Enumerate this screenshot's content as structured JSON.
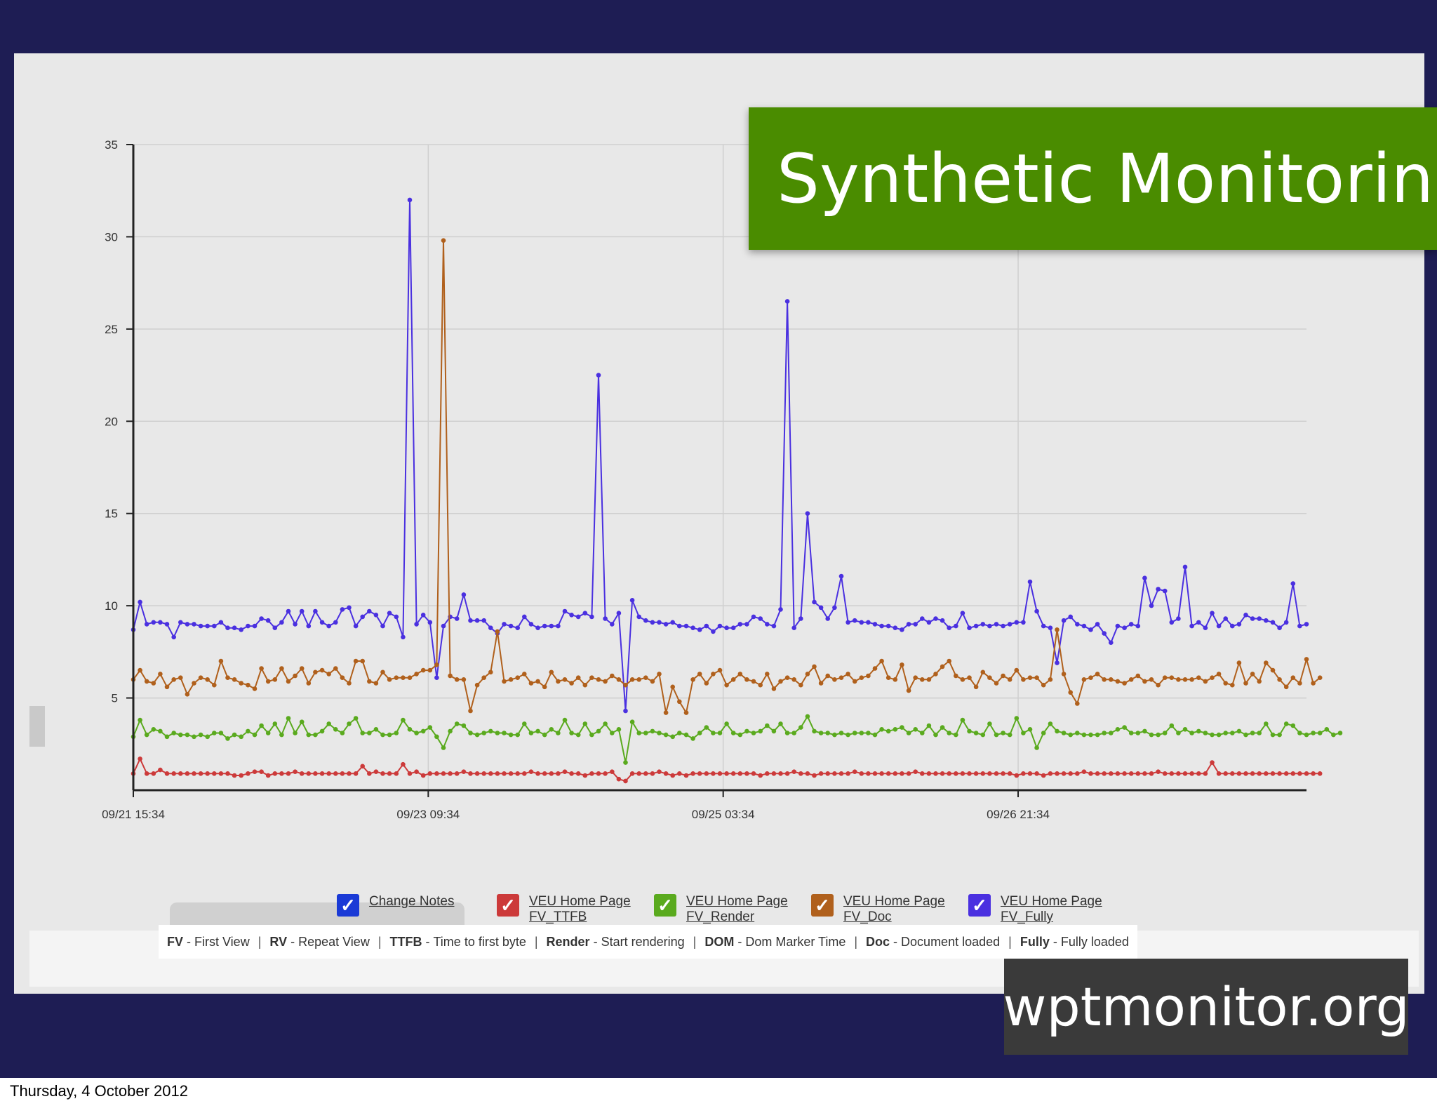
{
  "slide": {
    "title": "Synthetic Monitoring",
    "site": "wptmonitor.org",
    "footer_date": "Thursday, 4 October 2012"
  },
  "colors": {
    "slide_bg": "#1e1d54",
    "title_banner": "#4a8c00",
    "site_banner": "#3a3a3a",
    "change_notes": "#1a3ad6",
    "ttfb": "#cc3a3a",
    "render": "#5aaa1e",
    "doc": "#b0601c",
    "fully": "#4a30e0"
  },
  "legend": [
    {
      "line1": "Change Notes",
      "line2": "",
      "color_key": "change_notes"
    },
    {
      "line1": "VEU Home Page",
      "line2": "FV_TTFB",
      "color_key": "ttfb"
    },
    {
      "line1": "VEU Home Page",
      "line2": "FV_Render",
      "color_key": "render"
    },
    {
      "line1": "VEU Home Page",
      "line2": "FV_Doc",
      "color_key": "doc"
    },
    {
      "line1": "VEU Home Page",
      "line2": "FV_Fully",
      "color_key": "fully"
    }
  ],
  "abbreviations": [
    {
      "key": "FV",
      "text": "First View"
    },
    {
      "key": "RV",
      "text": "Repeat View"
    },
    {
      "key": "TTFB",
      "text": "Time to first byte"
    },
    {
      "key": "Render",
      "text": "Start rendering"
    },
    {
      "key": "DOM",
      "text": "Dom Marker Time"
    },
    {
      "key": "Doc",
      "text": "Document loaded"
    },
    {
      "key": "Fully",
      "text": "Fully loaded"
    }
  ],
  "chart_data": {
    "type": "line",
    "ylim": [
      0,
      35
    ],
    "yticks": [
      5,
      10,
      15,
      20,
      25,
      30,
      35
    ],
    "xtick_labels": [
      "09/21 15:34",
      "09/23 09:34",
      "09/25 03:34",
      "09/26 21:34"
    ],
    "grid": true,
    "legend_position": "bottom",
    "series": [
      {
        "name": "VEU Home Page FV_Fully",
        "color_key": "fully",
        "values": [
          8.7,
          10.2,
          9.0,
          9.1,
          9.1,
          9.0,
          8.3,
          9.1,
          9.0,
          9.0,
          8.9,
          8.9,
          8.9,
          9.1,
          8.8,
          8.8,
          8.7,
          8.9,
          8.9,
          9.3,
          9.2,
          8.8,
          9.1,
          9.7,
          9.0,
          9.7,
          8.9,
          9.7,
          9.1,
          8.9,
          9.1,
          9.8,
          9.9,
          8.9,
          9.4,
          9.7,
          9.5,
          8.9,
          9.6,
          9.4,
          8.3,
          32.0,
          9.0,
          9.5,
          9.1,
          6.1,
          8.9,
          9.4,
          9.3,
          10.6,
          9.2,
          9.2,
          9.2,
          8.8,
          8.5,
          9.0,
          8.9,
          8.8,
          9.4,
          9.0,
          8.8,
          8.9,
          8.9,
          8.9,
          9.7,
          9.5,
          9.4,
          9.6,
          9.4,
          22.5,
          9.3,
          9.0,
          9.6,
          4.3,
          10.3,
          9.4,
          9.2,
          9.1,
          9.1,
          9.0,
          9.1,
          8.9,
          8.9,
          8.8,
          8.7,
          8.9,
          8.6,
          8.9,
          8.8,
          8.8,
          9.0,
          9.0,
          9.4,
          9.3,
          9.0,
          8.9,
          9.8,
          26.5,
          8.8,
          9.3,
          15.0,
          10.2,
          9.9,
          9.3,
          9.9,
          11.6,
          9.1,
          9.2,
          9.1,
          9.1,
          9.0,
          8.9,
          8.9,
          8.8,
          8.7,
          9.0,
          9.0,
          9.3,
          9.1,
          9.3,
          9.2,
          8.8,
          8.9,
          9.6,
          8.8,
          8.9,
          9.0,
          8.9,
          9.0,
          8.9,
          9.0,
          9.1,
          9.1,
          11.3,
          9.7,
          8.9,
          8.8,
          6.9,
          9.2,
          9.4,
          9.0,
          8.9,
          8.7,
          9.0,
          8.5,
          8.0,
          8.9,
          8.8,
          9.0,
          8.9,
          11.5,
          10.0,
          10.9,
          10.8,
          9.1,
          9.3,
          12.1,
          8.9,
          9.1,
          8.8,
          9.6,
          8.9,
          9.3,
          8.9,
          9.0,
          9.5,
          9.3,
          9.3,
          9.2,
          9.1,
          8.8,
          9.1,
          11.2,
          8.9,
          9.0
        ]
      },
      {
        "name": "VEU Home Page FV_Doc",
        "color_key": "doc",
        "values": [
          6.0,
          6.5,
          5.9,
          5.8,
          6.3,
          5.6,
          6.0,
          6.1,
          5.2,
          5.8,
          6.1,
          6.0,
          5.7,
          7.0,
          6.1,
          6.0,
          5.8,
          5.7,
          5.5,
          6.6,
          5.9,
          6.0,
          6.6,
          5.9,
          6.2,
          6.6,
          5.8,
          6.4,
          6.5,
          6.3,
          6.6,
          6.1,
          5.8,
          7.0,
          7.0,
          5.9,
          5.8,
          6.4,
          6.0,
          6.1,
          6.1,
          6.1,
          6.3,
          6.5,
          6.5,
          6.8,
          29.8,
          6.2,
          6.0,
          6.0,
          4.3,
          5.7,
          6.1,
          6.4,
          8.6,
          5.9,
          6.0,
          6.1,
          6.3,
          5.8,
          5.9,
          5.6,
          6.4,
          5.9,
          6.0,
          5.8,
          6.1,
          5.7,
          6.1,
          6.0,
          5.9,
          6.2,
          6.0,
          5.7,
          6.0,
          6.0,
          6.1,
          5.9,
          6.3,
          4.2,
          5.6,
          4.8,
          4.2,
          6.0,
          6.3,
          5.8,
          6.3,
          6.5,
          5.7,
          6.0,
          6.3,
          6.0,
          5.9,
          5.7,
          6.3,
          5.5,
          5.9,
          6.1,
          6.0,
          5.7,
          6.3,
          6.7,
          5.8,
          6.2,
          6.0,
          6.1,
          6.3,
          5.9,
          6.1,
          6.2,
          6.6,
          7.0,
          6.1,
          6.0,
          6.8,
          5.4,
          6.1,
          6.0,
          6.0,
          6.3,
          6.7,
          7.0,
          6.2,
          6.0,
          6.1,
          5.6,
          6.4,
          6.1,
          5.8,
          6.2,
          6.0,
          6.5,
          6.0,
          6.1,
          6.1,
          5.7,
          6.0,
          8.7,
          6.3,
          5.3,
          4.7,
          6.0,
          6.1,
          6.3,
          6.0,
          6.0,
          5.9,
          5.8,
          6.0,
          6.2,
          5.9,
          6.0,
          5.7,
          6.1,
          6.1,
          6.0,
          6.0,
          6.0,
          6.1,
          5.9,
          6.1,
          6.3,
          5.8,
          5.7,
          6.9,
          5.8,
          6.3,
          5.9,
          6.9,
          6.5,
          6.0,
          5.6,
          6.1,
          5.8,
          7.1,
          5.8,
          6.1
        ]
      },
      {
        "name": "VEU Home Page FV_Render",
        "color_key": "render",
        "values": [
          2.9,
          3.8,
          3.0,
          3.3,
          3.2,
          2.9,
          3.1,
          3.0,
          3.0,
          2.9,
          3.0,
          2.9,
          3.1,
          3.1,
          2.8,
          3.0,
          2.9,
          3.2,
          3.0,
          3.5,
          3.1,
          3.6,
          3.0,
          3.9,
          3.1,
          3.7,
          3.0,
          3.0,
          3.2,
          3.6,
          3.3,
          3.1,
          3.6,
          3.9,
          3.1,
          3.1,
          3.3,
          3.0,
          3.0,
          3.1,
          3.8,
          3.3,
          3.1,
          3.2,
          3.4,
          2.9,
          2.3,
          3.2,
          3.6,
          3.5,
          3.1,
          3.0,
          3.1,
          3.2,
          3.1,
          3.1,
          3.0,
          3.0,
          3.6,
          3.1,
          3.2,
          3.0,
          3.3,
          3.1,
          3.8,
          3.1,
          3.0,
          3.6,
          3.0,
          3.2,
          3.6,
          3.1,
          3.3,
          1.5,
          3.7,
          3.1,
          3.1,
          3.2,
          3.1,
          3.0,
          2.9,
          3.1,
          3.0,
          2.8,
          3.1,
          3.4,
          3.1,
          3.1,
          3.6,
          3.1,
          3.0,
          3.2,
          3.1,
          3.2,
          3.5,
          3.2,
          3.6,
          3.1,
          3.1,
          3.4,
          4.0,
          3.2,
          3.1,
          3.1,
          3.0,
          3.1,
          3.0,
          3.1,
          3.1,
          3.1,
          3.0,
          3.3,
          3.2,
          3.3,
          3.4,
          3.1,
          3.3,
          3.1,
          3.5,
          3.0,
          3.4,
          3.1,
          3.0,
          3.8,
          3.2,
          3.1,
          3.0,
          3.6,
          3.0,
          3.1,
          3.0,
          3.9,
          3.1,
          3.3,
          2.3,
          3.1,
          3.6,
          3.2,
          3.1,
          3.0,
          3.1,
          3.0,
          3.0,
          3.0,
          3.1,
          3.1,
          3.3,
          3.4,
          3.1,
          3.1,
          3.2,
          3.0,
          3.0,
          3.1,
          3.5,
          3.1,
          3.3,
          3.1,
          3.2,
          3.1,
          3.0,
          3.0,
          3.1,
          3.1,
          3.2,
          3.0,
          3.1,
          3.1,
          3.6,
          3.0,
          3.0,
          3.6,
          3.5,
          3.1,
          3.0,
          3.1,
          3.1,
          3.3,
          3.0,
          3.1
        ]
      },
      {
        "name": "VEU Home Page FV_TTFB",
        "color_key": "ttfb",
        "values": [
          0.9,
          1.7,
          0.9,
          0.9,
          1.1,
          0.9,
          0.9,
          0.9,
          0.9,
          0.9,
          0.9,
          0.9,
          0.9,
          0.9,
          0.9,
          0.8,
          0.8,
          0.9,
          1.0,
          1.0,
          0.8,
          0.9,
          0.9,
          0.9,
          1.0,
          0.9,
          0.9,
          0.9,
          0.9,
          0.9,
          0.9,
          0.9,
          0.9,
          0.9,
          1.3,
          0.9,
          1.0,
          0.9,
          0.9,
          0.9,
          1.4,
          0.9,
          1.0,
          0.8,
          0.9,
          0.9,
          0.9,
          0.9,
          0.9,
          1.0,
          0.9,
          0.9,
          0.9,
          0.9,
          0.9,
          0.9,
          0.9,
          0.9,
          0.9,
          1.0,
          0.9,
          0.9,
          0.9,
          0.9,
          1.0,
          0.9,
          0.9,
          0.8,
          0.9,
          0.9,
          0.9,
          1.0,
          0.6,
          0.5,
          0.9,
          0.9,
          0.9,
          0.9,
          1.0,
          0.9,
          0.8,
          0.9,
          0.8,
          0.9,
          0.9,
          0.9,
          0.9,
          0.9,
          0.9,
          0.9,
          0.9,
          0.9,
          0.9,
          0.8,
          0.9,
          0.9,
          0.9,
          0.9,
          1.0,
          0.9,
          0.9,
          0.8,
          0.9,
          0.9,
          0.9,
          0.9,
          0.9,
          1.0,
          0.9,
          0.9,
          0.9,
          0.9,
          0.9,
          0.9,
          0.9,
          0.9,
          1.0,
          0.9,
          0.9,
          0.9,
          0.9,
          0.9,
          0.9,
          0.9,
          0.9,
          0.9,
          0.9,
          0.9,
          0.9,
          0.9,
          0.9,
          0.8,
          0.9,
          0.9,
          0.9,
          0.8,
          0.9,
          0.9,
          0.9,
          0.9,
          0.9,
          1.0,
          0.9,
          0.9,
          0.9,
          0.9,
          0.9,
          0.9,
          0.9,
          0.9,
          0.9,
          0.9,
          1.0,
          0.9,
          0.9,
          0.9,
          0.9,
          0.9,
          0.9,
          0.9,
          1.5,
          0.9,
          0.9,
          0.9,
          0.9,
          0.9,
          0.9,
          0.9,
          0.9,
          0.9,
          0.9,
          0.9,
          0.9,
          0.9,
          0.9,
          0.9,
          0.9
        ]
      }
    ]
  }
}
